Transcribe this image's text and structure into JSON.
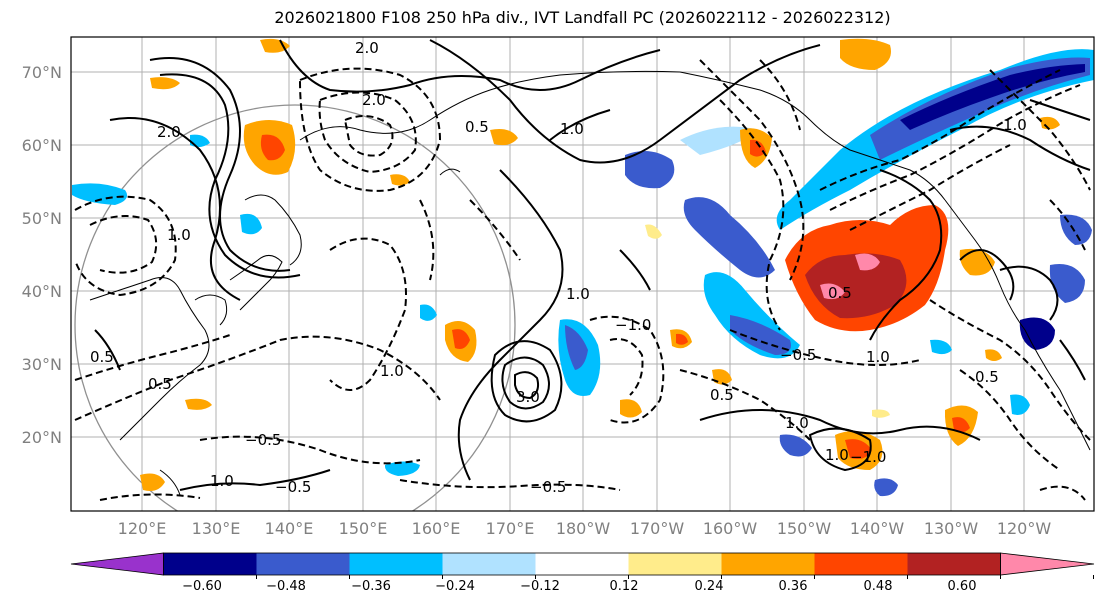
{
  "title": "2026021800 F108 250 hPa div., IVT Landfall PC (2026022112 - 2026022312)",
  "lat_labels": [
    "70°N",
    "60°N",
    "50°N",
    "40°N",
    "30°N",
    "20°N"
  ],
  "lon_labels": [
    "120°E",
    "130°E",
    "140°E",
    "150°E",
    "160°E",
    "170°E",
    "180°W",
    "170°W",
    "160°W",
    "150°W",
    "140°W",
    "130°W",
    "120°W"
  ],
  "colorbar": {
    "colors": [
      "#9932cc",
      "#00008b",
      "#3a5bcd",
      "#00bfff",
      "#b0e2ff",
      "#ffffff",
      "#ffec8b",
      "#ffa500",
      "#ff4500",
      "#b22222",
      "#ff88aa"
    ],
    "tick_labels": [
      "−0.60",
      "−0.48",
      "−0.36",
      "−0.24",
      "−0.12",
      "0.12",
      "0.24",
      "0.36",
      "0.48",
      "0.60"
    ]
  },
  "contour_labels": [
    "2.0",
    "2.0",
    "2.0",
    "1.0",
    "1.0",
    "1.0",
    "1.0",
    "1.0",
    "0.5",
    "0.5",
    "0.5",
    "0.5",
    "0.5",
    "−0.5",
    "−0.5",
    "1.0",
    "3.0",
    "1.0",
    "1.0",
    "−1.0",
    "−1.0",
    "−0.5",
    "0.5",
    "1.0",
    "−0.5"
  ]
}
